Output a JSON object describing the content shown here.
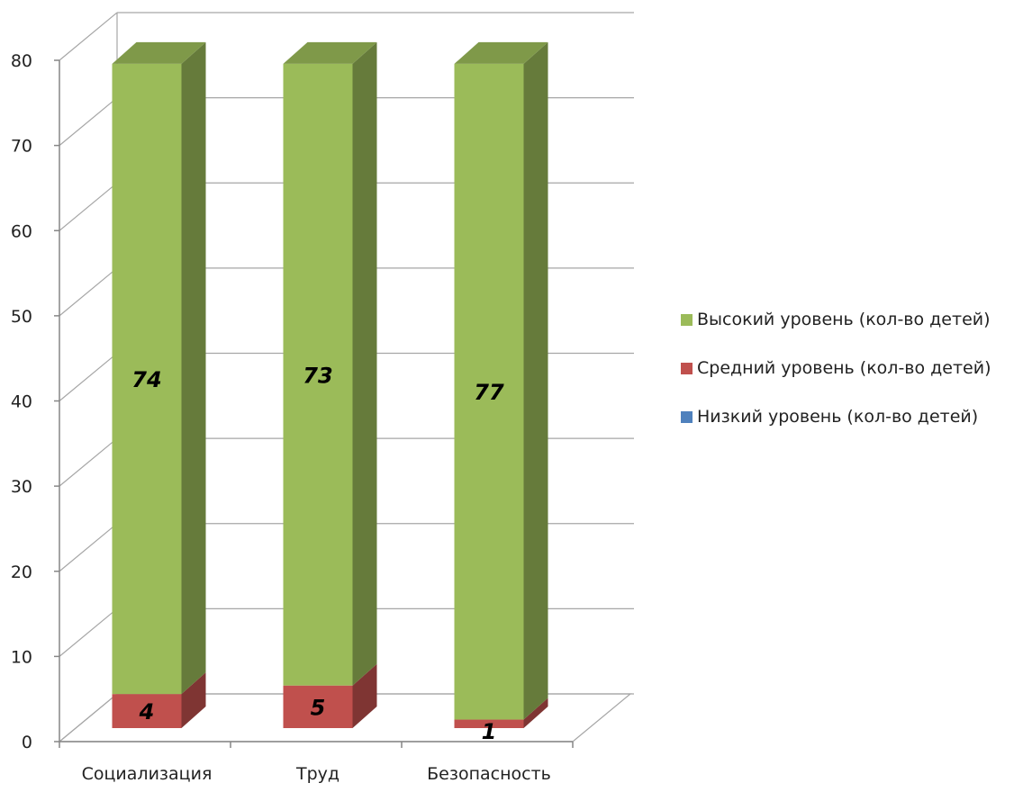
{
  "chart_data": {
    "type": "bar",
    "stacked": true,
    "three_d": true,
    "categories": [
      "Социализация",
      "Труд",
      "Безопасность"
    ],
    "series": [
      {
        "name": "Высокий уровень (кол-во детей)",
        "values": [
          74,
          73,
          77
        ],
        "color": "#9BBB59"
      },
      {
        "name": "Средний уровень (кол-во детей)",
        "values": [
          4,
          5,
          1
        ],
        "color": "#C0504D"
      },
      {
        "name": "Низкий уровень (кол-во детей)",
        "values": [
          0,
          0,
          0
        ],
        "color": "#4F81BD"
      }
    ],
    "stack_order": [
      2,
      1,
      0
    ],
    "legend_order": [
      0,
      1,
      2
    ],
    "ylim": [
      0,
      80
    ],
    "yticks": [
      0,
      10,
      20,
      30,
      40,
      50,
      60,
      70,
      80
    ],
    "grid": true,
    "legend_position": "right"
  }
}
